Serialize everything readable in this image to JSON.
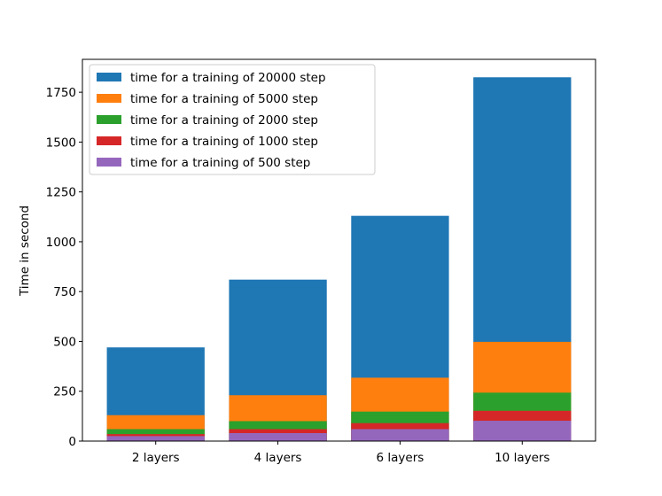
{
  "chart_data": {
    "type": "bar",
    "stacked": false,
    "title": "",
    "xlabel": "",
    "ylabel": "Time in second",
    "categories": [
      "2 layers",
      "4 layers",
      "6 layers",
      "10 layers"
    ],
    "ylim": [
      0,
      1915
    ],
    "yticks": [
      0,
      250,
      500,
      750,
      1000,
      1250,
      1500,
      1750
    ],
    "grid": false,
    "legend_position": "top-left",
    "series": [
      {
        "name": "time for a training of 20000 step",
        "color": "#1f77b4",
        "values": [
          470,
          810,
          1130,
          1825
        ]
      },
      {
        "name": "time for a training of 5000 step",
        "color": "#ff7f0e",
        "values": [
          130,
          230,
          318,
          498
        ]
      },
      {
        "name": "time for a training of 2000 step",
        "color": "#2ca02c",
        "values": [
          60,
          100,
          148,
          243
        ]
      },
      {
        "name": "time for a training of 1000 step",
        "color": "#d62728",
        "values": [
          35,
          60,
          90,
          152
        ]
      },
      {
        "name": "time for a training of 500 step",
        "color": "#9467bd",
        "values": [
          25,
          40,
          60,
          102
        ]
      }
    ]
  }
}
